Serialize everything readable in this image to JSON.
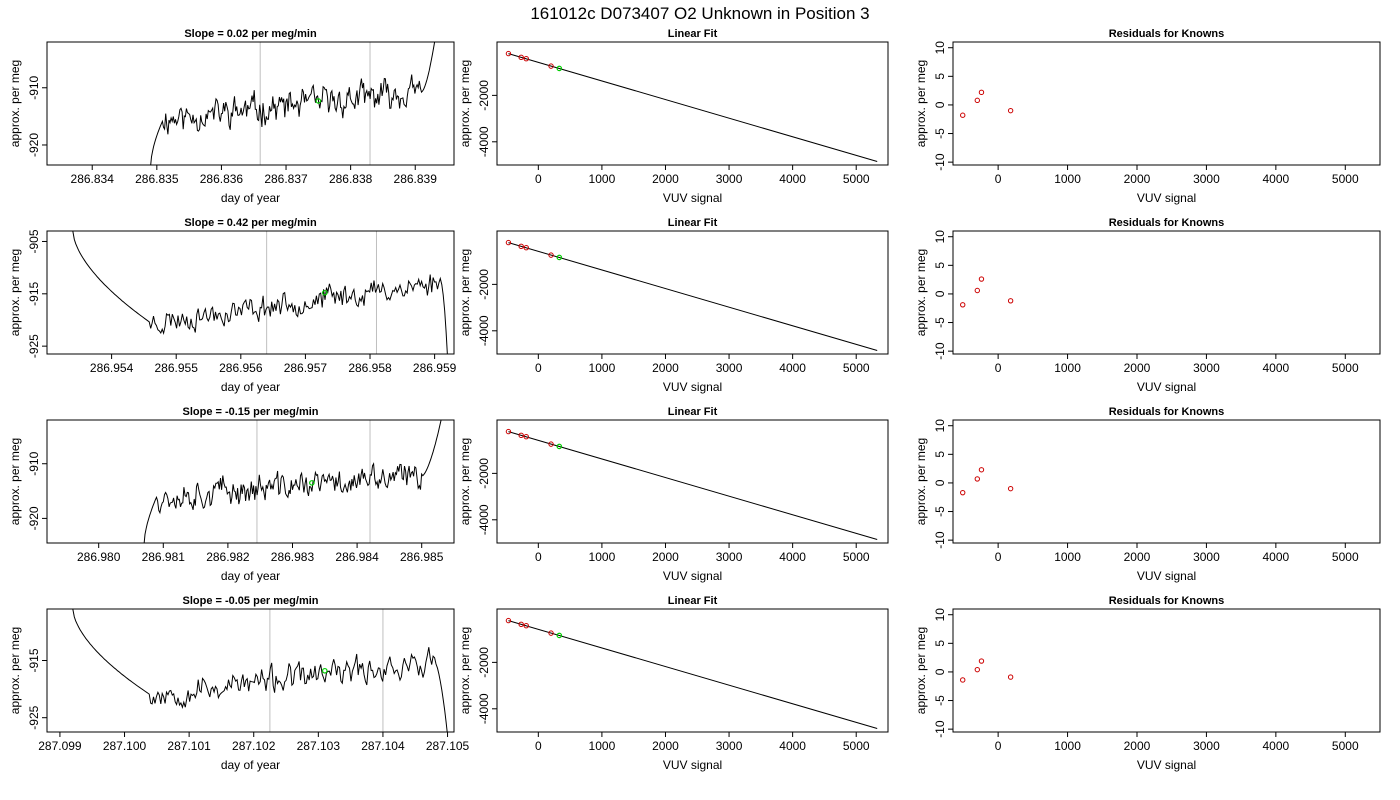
{
  "title": "161012c      D073407   O2 Unknown in Position  3",
  "colors": {
    "trace": "#000000",
    "known": "#cc0000",
    "unknown": "#00cc00",
    "vline": "#bfbfbf"
  },
  "labels": {
    "ts_xlabel": "day of year",
    "ylabel": "approx. per meg",
    "fit_title": "Linear Fit",
    "fit_xlabel": "VUV signal",
    "res_title": "Residuals for Knowns",
    "res_xlabel": "VUV signal"
  },
  "chart_data": [
    {
      "type": "line",
      "title": "Slope =  0.02  per meg/min",
      "xlabel": "day of year",
      "ylabel": "approx. per meg",
      "xlim": [
        286.8333,
        286.8396
      ],
      "ylim": [
        -923.5,
        -902
      ],
      "xticks": [
        "286.834",
        "286.835",
        "286.836",
        "286.837",
        "286.838",
        "286.839"
      ],
      "yticks": [
        "-910",
        "-920"
      ],
      "reference_lines_x": [
        286.8366,
        286.8383
      ],
      "unknown_point": {
        "x": 286.8375,
        "y": -912.3
      },
      "trace": {
        "start": 286.8349,
        "end": 286.8393,
        "low": -924,
        "high": -902,
        "plateau_start": 286.8351,
        "plateau_end": 286.8391,
        "base": -915.5,
        "slope_per_day": 1200,
        "noise": 2.0,
        "seed": 11,
        "tail": "up"
      }
    },
    {
      "type": "line",
      "title": "Slope =  0.42  per meg/min",
      "xlabel": "day of year",
      "ylabel": "approx. per meg",
      "xlim": [
        286.953,
        286.9593
      ],
      "ylim": [
        -926.5,
        -903
      ],
      "xticks": [
        "286.954",
        "286.955",
        "286.956",
        "286.957",
        "286.958",
        "286.959"
      ],
      "yticks": [
        "-905",
        "-915",
        "-925"
      ],
      "reference_lines_x": [
        286.9564,
        286.9581
      ],
      "unknown_point": {
        "x": 286.9573,
        "y": -914.8
      },
      "trace": {
        "start": 286.9534,
        "end": 286.9592,
        "low": -927,
        "high": -903,
        "plateau_start": 286.9546,
        "plateau_end": 286.9591,
        "base": -920.5,
        "slope_per_day": 1700,
        "noise": 1.8,
        "seed": 23,
        "tail": "down"
      }
    },
    {
      "type": "line",
      "title": "Slope =  -0.15  per meg/min",
      "xlabel": "day of year",
      "ylabel": "approx. per meg",
      "xlim": [
        286.9792,
        286.9855
      ],
      "ylim": [
        -924.5,
        -902
      ],
      "xticks": [
        "286.980",
        "286.981",
        "286.982",
        "286.983",
        "286.984",
        "286.985"
      ],
      "yticks": [
        "-910",
        "-920"
      ],
      "reference_lines_x": [
        286.98245,
        286.9842
      ],
      "unknown_point": {
        "x": 286.9833,
        "y": -913.5
      },
      "trace": {
        "start": 286.9807,
        "end": 286.9853,
        "low": -925,
        "high": -902,
        "plateau_start": 286.9809,
        "plateau_end": 286.985,
        "base": -916,
        "slope_per_day": 900,
        "noise": 2.0,
        "seed": 37,
        "tail": "up"
      }
    },
    {
      "type": "line",
      "title": "Slope =  -0.05  per meg/min",
      "xlabel": "day of year",
      "ylabel": "approx. per meg",
      "xlim": [
        287.0988,
        287.1051
      ],
      "ylim": [
        -927.5,
        -906
      ],
      "xticks": [
        "287.099",
        "287.100",
        "287.101",
        "287.102",
        "287.103",
        "287.104",
        "287.105"
      ],
      "yticks": [
        "-915",
        "-925"
      ],
      "reference_lines_x": [
        287.10225,
        287.104
      ],
      "unknown_point": {
        "x": 287.1031,
        "y": -916.8
      },
      "trace": {
        "start": 287.0992,
        "end": 287.105,
        "low": -928,
        "high": -906,
        "plateau_start": 287.1004,
        "plateau_end": 287.1048,
        "base": -921,
        "slope_per_day": 1300,
        "noise": 1.8,
        "seed": 53,
        "tail": "down"
      }
    },
    {
      "type": "scatter",
      "title": "Linear Fit",
      "xlabel": "VUV signal",
      "ylabel": "approx. per meg",
      "xlim": [
        -650,
        5500
      ],
      "ylim": [
        -5000,
        300
      ],
      "xticks": [
        0,
        1000,
        2000,
        3000,
        4000,
        5000
      ],
      "yticks": [
        -2000,
        -4000
      ],
      "fit_line": {
        "x": [
          -470,
          5330
        ],
        "y": [
          -200,
          -4850
        ]
      },
      "knowns": [
        {
          "x": -470,
          "y": -200
        },
        {
          "x": -270,
          "y": -360
        },
        {
          "x": -190,
          "y": -420
        },
        {
          "x": 200,
          "y": -740
        }
      ],
      "unknown": {
        "x": 330,
        "y": -840
      }
    },
    {
      "type": "scatter",
      "title": "Linear Fit",
      "xlabel": "VUV signal",
      "ylabel": "approx. per meg",
      "xlim": [
        -650,
        5500
      ],
      "ylim": [
        -5000,
        300
      ],
      "xticks": [
        0,
        1000,
        2000,
        3000,
        4000,
        5000
      ],
      "yticks": [
        -2000,
        -4000
      ],
      "fit_line": {
        "x": [
          -470,
          5330
        ],
        "y": [
          -200,
          -4850
        ]
      },
      "knowns": [
        {
          "x": -470,
          "y": -200
        },
        {
          "x": -270,
          "y": -360
        },
        {
          "x": -190,
          "y": -420
        },
        {
          "x": 200,
          "y": -740
        }
      ],
      "unknown": {
        "x": 330,
        "y": -840
      }
    },
    {
      "type": "scatter",
      "title": "Linear Fit",
      "xlabel": "VUV signal",
      "ylabel": "approx. per meg",
      "xlim": [
        -650,
        5500
      ],
      "ylim": [
        -5000,
        300
      ],
      "xticks": [
        0,
        1000,
        2000,
        3000,
        4000,
        5000
      ],
      "yticks": [
        -2000,
        -4000
      ],
      "fit_line": {
        "x": [
          -470,
          5330
        ],
        "y": [
          -200,
          -4850
        ]
      },
      "knowns": [
        {
          "x": -470,
          "y": -200
        },
        {
          "x": -270,
          "y": -360
        },
        {
          "x": -190,
          "y": -420
        },
        {
          "x": 200,
          "y": -740
        }
      ],
      "unknown": {
        "x": 330,
        "y": -840
      }
    },
    {
      "type": "scatter",
      "title": "Linear Fit",
      "xlabel": "VUV signal",
      "ylabel": "approx. per meg",
      "xlim": [
        -650,
        5500
      ],
      "ylim": [
        -5000,
        300
      ],
      "xticks": [
        0,
        1000,
        2000,
        3000,
        4000,
        5000
      ],
      "yticks": [
        -2000,
        -4000
      ],
      "fit_line": {
        "x": [
          -470,
          5330
        ],
        "y": [
          -200,
          -4850
        ]
      },
      "knowns": [
        {
          "x": -470,
          "y": -200
        },
        {
          "x": -270,
          "y": -360
        },
        {
          "x": -190,
          "y": -420
        },
        {
          "x": 200,
          "y": -740
        }
      ],
      "unknown": {
        "x": 330,
        "y": -840
      }
    },
    {
      "type": "scatter",
      "title": "Residuals for Knowns",
      "xlabel": "VUV signal",
      "ylabel": "approx. per meg",
      "xlim": [
        -650,
        5500
      ],
      "ylim": [
        -10.5,
        11
      ],
      "xticks": [
        0,
        1000,
        2000,
        3000,
        4000,
        5000
      ],
      "yticks": [
        -10,
        -5,
        0,
        5,
        10
      ],
      "points": [
        {
          "x": -510,
          "y": -1.8
        },
        {
          "x": -300,
          "y": 0.8
        },
        {
          "x": -240,
          "y": 2.2
        },
        {
          "x": 180,
          "y": -1.0
        }
      ]
    },
    {
      "type": "scatter",
      "title": "Residuals for Knowns",
      "xlabel": "VUV signal",
      "ylabel": "approx. per meg",
      "xlim": [
        -650,
        5500
      ],
      "ylim": [
        -10.5,
        11
      ],
      "xticks": [
        0,
        1000,
        2000,
        3000,
        4000,
        5000
      ],
      "yticks": [
        -10,
        -5,
        0,
        5,
        10
      ],
      "points": [
        {
          "x": -510,
          "y": -1.9
        },
        {
          "x": -300,
          "y": 0.6
        },
        {
          "x": -240,
          "y": 2.6
        },
        {
          "x": 180,
          "y": -1.2
        }
      ]
    },
    {
      "type": "scatter",
      "title": "Residuals for Knowns",
      "xlabel": "VUV signal",
      "ylabel": "approx. per meg",
      "xlim": [
        -650,
        5500
      ],
      "ylim": [
        -10.5,
        11
      ],
      "xticks": [
        0,
        1000,
        2000,
        3000,
        4000,
        5000
      ],
      "yticks": [
        -10,
        -5,
        0,
        5,
        10
      ],
      "points": [
        {
          "x": -510,
          "y": -1.7
        },
        {
          "x": -300,
          "y": 0.7
        },
        {
          "x": -240,
          "y": 2.3
        },
        {
          "x": 180,
          "y": -1.0
        }
      ]
    },
    {
      "type": "scatter",
      "title": "Residuals for Knowns",
      "xlabel": "VUV signal",
      "ylabel": "approx. per meg",
      "xlim": [
        -650,
        5500
      ],
      "ylim": [
        -10.5,
        11
      ],
      "xticks": [
        0,
        1000,
        2000,
        3000,
        4000,
        5000
      ],
      "yticks": [
        -10,
        -5,
        0,
        5,
        10
      ],
      "points": [
        {
          "x": -510,
          "y": -1.4
        },
        {
          "x": -300,
          "y": 0.4
        },
        {
          "x": -240,
          "y": 1.9
        },
        {
          "x": 180,
          "y": -0.9
        }
      ]
    }
  ]
}
